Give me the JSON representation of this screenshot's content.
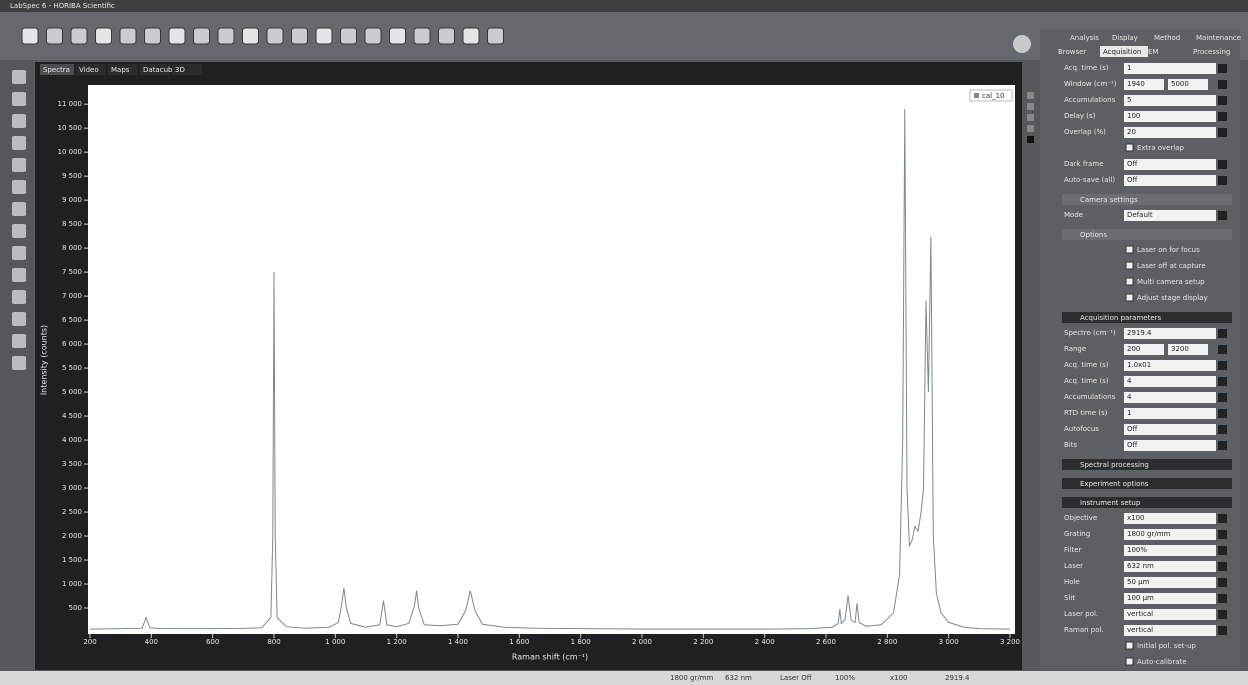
{
  "window_title": "LabSpec 6 - HORIBA Scientific",
  "view_tabs": [
    "Spectra",
    "Video",
    "Maps",
    "Datacube",
    "3D"
  ],
  "chart_data": {
    "type": "line",
    "xlabel": "Raman shift (cm⁻¹)",
    "ylabel": "Intensity (counts)",
    "x": [
      200,
      300,
      370,
      383,
      395,
      420,
      500,
      600,
      700,
      760,
      790,
      796,
      800,
      804,
      810,
      840,
      900,
      980,
      1010,
      1020,
      1028,
      1036,
      1050,
      1100,
      1145,
      1157,
      1168,
      1200,
      1240,
      1258,
      1265,
      1272,
      1290,
      1340,
      1400,
      1425,
      1440,
      1455,
      1480,
      1550,
      1650,
      1800,
      2000,
      2200,
      2400,
      2550,
      2620,
      2640,
      2645,
      2650,
      2662,
      2672,
      2682,
      2695,
      2701,
      2708,
      2730,
      2780,
      2820,
      2840,
      2850,
      2857,
      2864,
      2872,
      2880,
      2890,
      2900,
      2910,
      2918,
      2926,
      2934,
      2942,
      2950,
      2960,
      2975,
      3000,
      3050,
      3100,
      3200
    ],
    "series": [
      {
        "name": "cal_10",
        "color": "#7d8896",
        "values": [
          60,
          70,
          80,
          300,
          90,
          75,
          70,
          70,
          75,
          90,
          300,
          2000,
          7500,
          2000,
          300,
          110,
          80,
          100,
          200,
          550,
          920,
          500,
          180,
          100,
          150,
          650,
          150,
          110,
          180,
          550,
          860,
          500,
          150,
          130,
          160,
          450,
          860,
          450,
          160,
          100,
          80,
          70,
          60,
          60,
          60,
          70,
          100,
          180,
          480,
          180,
          250,
          760,
          250,
          200,
          600,
          200,
          120,
          150,
          400,
          1200,
          4000,
          10900,
          3000,
          1800,
          1900,
          2200,
          2100,
          2500,
          3000,
          6900,
          5000,
          8240,
          2000,
          800,
          400,
          200,
          100,
          70,
          60
        ]
      }
    ],
    "xlim": [
      200,
      3200
    ],
    "xticks": [
      200,
      400,
      600,
      800,
      {
        "value": 1000,
        "label": "1 000"
      },
      {
        "value": 1200,
        "label": "1 200"
      },
      {
        "value": 1400,
        "label": "1 400"
      },
      {
        "value": 1600,
        "label": "1 600"
      },
      {
        "value": 1800,
        "label": "1 800"
      },
      {
        "value": 2000,
        "label": "2 000"
      },
      {
        "value": 2200,
        "label": "2 200"
      },
      {
        "value": 2400,
        "label": "2 400"
      },
      {
        "value": 2600,
        "label": "2 600"
      },
      {
        "value": 2800,
        "label": "2 800"
      },
      {
        "value": 3000,
        "label": "3 000"
      },
      {
        "value": 3200,
        "label": "3 200"
      }
    ],
    "ylim": [
      0,
      11400
    ],
    "yticks": [
      500,
      {
        "value": 1000,
        "label": "1 000"
      },
      {
        "value": 1500,
        "label": "1 500"
      },
      {
        "value": 2000,
        "label": "2 000"
      },
      {
        "value": 2500,
        "label": "2 500"
      },
      {
        "value": 3000,
        "label": "3 000"
      },
      {
        "value": 3500,
        "label": "3 500"
      },
      {
        "value": 4000,
        "label": "4 000"
      },
      {
        "value": 4500,
        "label": "4 500"
      },
      {
        "value": 5000,
        "label": "5 000"
      },
      {
        "value": 5500,
        "label": "5 500"
      },
      {
        "value": 6000,
        "label": "6 000"
      },
      {
        "value": 6500,
        "label": "6 500"
      },
      {
        "value": 7000,
        "label": "7 000"
      },
      {
        "value": 7500,
        "label": "7 500"
      },
      {
        "value": 8000,
        "label": "8 000"
      },
      {
        "value": 8500,
        "label": "8 500"
      },
      {
        "value": 9000,
        "label": "9 000"
      },
      {
        "value": 9500,
        "label": "9 500"
      },
      {
        "value": 10000,
        "label": "10 000"
      },
      {
        "value": 10500,
        "label": "10 500"
      },
      {
        "value": 11000,
        "label": "11 000"
      }
    ],
    "grid": false,
    "legend": "upper right"
  },
  "panel": {
    "tabs_top": [
      "Analysis",
      "Display",
      "Method",
      "Maintenance"
    ],
    "tabs_bottom": [
      "Browser",
      "Acquisition",
      "EM",
      "Processing"
    ],
    "sections": [
      {
        "rows": [
          {
            "label": "Acq. time (s)",
            "value": "1"
          },
          {
            "label": "Window (cm⁻¹)",
            "value": "1940",
            "value2": "5000"
          },
          {
            "label": "Accumulations",
            "value": "5"
          },
          {
            "label": "Delay (s)",
            "value": "100"
          },
          {
            "label": "Overlap (%)",
            "value": "20"
          },
          {
            "check": "Extra overlap"
          },
          {
            "label": "Dark frame",
            "value": "Off"
          },
          {
            "label": "Auto-save (all)",
            "value": "Off"
          }
        ]
      },
      {
        "title": "Camera settings",
        "rows": [
          {
            "label": "Mode",
            "value": "Default"
          }
        ]
      },
      {
        "title": "Options",
        "rows": [
          {
            "check": "Laser on for focus"
          },
          {
            "check": "Laser off at capture"
          },
          {
            "check": "Multi camera setup"
          },
          {
            "check": "Adjust stage display"
          }
        ]
      },
      {
        "title": "Acquisition parameters",
        "dark": true,
        "rows": [
          {
            "label": "Spectro (cm⁻¹)",
            "value": "2919.4"
          },
          {
            "label": "Range",
            "value": "200",
            "value2": "3200"
          },
          {
            "label": "Acq. time (s)",
            "value": "1.0x01"
          },
          {
            "label": "Acq. time (s)",
            "value": "4"
          },
          {
            "label": "Accumulations",
            "value": "4"
          },
          {
            "label": "RTD time (s)",
            "value": "1"
          },
          {
            "label": "Autofocus",
            "value": "Off"
          },
          {
            "label": "Bits",
            "value": "Off"
          }
        ]
      },
      {
        "title": "Spectral processing",
        "dark": true,
        "rows": []
      },
      {
        "title": "Experiment options",
        "dark": true,
        "rows": []
      },
      {
        "title": "Instrument setup",
        "dark": true,
        "rows": [
          {
            "label": "Objective",
            "value": "x100"
          },
          {
            "label": "Grating",
            "value": "1800 gr/mm"
          },
          {
            "label": "Filter",
            "value": "100%"
          },
          {
            "label": "Laser",
            "value": "632 nm"
          },
          {
            "label": "Hole",
            "value": "50 µm"
          },
          {
            "label": "Slit",
            "value": "100 µm"
          },
          {
            "label": "Laser pol.",
            "value": "vertical"
          },
          {
            "label": "Raman pol.",
            "value": "vertical"
          },
          {
            "check": "Initial pol. set-up"
          },
          {
            "check": "Auto-calibrate"
          }
        ]
      }
    ]
  },
  "status": [
    "1800 gr/mm",
    "632 nm",
    "Laser Off",
    "100%",
    "x100",
    "2919.4"
  ]
}
